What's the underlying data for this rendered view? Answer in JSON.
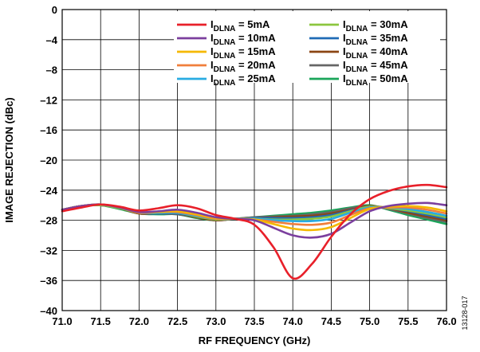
{
  "chart_data": {
    "type": "line",
    "xlabel": "RF FREQUENCY (GHz)",
    "ylabel": "IMAGE REJECTION (dBc)",
    "xlim": [
      71.0,
      76.0
    ],
    "ylim": [
      -40,
      0
    ],
    "x_ticks": [
      71.0,
      71.5,
      72.0,
      72.5,
      73.0,
      73.5,
      74.0,
      74.5,
      75.0,
      75.5,
      76.0
    ],
    "x_tick_labels": [
      "71.0",
      "71.5",
      "72.0",
      "72.5",
      "73.0",
      "73.5",
      "74.0",
      "74.5",
      "75.0",
      "75.5",
      "76.0"
    ],
    "y_ticks": [
      0,
      -4,
      -8,
      -12,
      -16,
      -20,
      -24,
      -28,
      -32,
      -36,
      -40
    ],
    "y_tick_labels": [
      "0",
      "–4",
      "–8",
      "–12",
      "–16",
      "–20",
      "–24",
      "–28",
      "–32",
      "–36",
      "–40"
    ],
    "grid": true,
    "legend_position": "top-right",
    "figure_id": "13128-017",
    "x": [
      71.0,
      71.25,
      71.5,
      71.75,
      72.0,
      72.25,
      72.5,
      72.75,
      73.0,
      73.25,
      73.5,
      73.75,
      74.0,
      74.25,
      74.5,
      74.75,
      75.0,
      75.25,
      75.5,
      75.75,
      76.0
    ],
    "series": [
      {
        "name_main": "I",
        "name_sub": "DLNA",
        "name_rest": " = 5mA",
        "color": "#e8202a",
        "values": [
          -26.8,
          -26.3,
          -25.9,
          -26.2,
          -26.7,
          -26.4,
          -26.0,
          -26.4,
          -27.3,
          -27.8,
          -28.6,
          -31.6,
          -35.7,
          -33.8,
          -30.2,
          -27.2,
          -25.2,
          -24.1,
          -23.5,
          -23.3,
          -23.6
        ]
      },
      {
        "name_main": "I",
        "name_sub": "DLNA",
        "name_rest": " = 10mA",
        "color": "#7b3f9e",
        "values": [
          -26.6,
          -26.1,
          -25.9,
          -26.3,
          -26.9,
          -26.8,
          -26.6,
          -27.0,
          -27.6,
          -27.8,
          -28.0,
          -29.0,
          -30.0,
          -30.3,
          -29.8,
          -28.3,
          -26.8,
          -26.1,
          -25.8,
          -25.7,
          -26.0
        ]
      },
      {
        "name_main": "I",
        "name_sub": "DLNA",
        "name_rest": " = 15mA",
        "color": "#f5b800",
        "values": [
          -26.6,
          -26.1,
          -25.9,
          -26.3,
          -26.9,
          -26.9,
          -26.8,
          -27.2,
          -27.7,
          -27.8,
          -27.9,
          -28.5,
          -29.1,
          -29.3,
          -28.9,
          -27.7,
          -26.5,
          -26.2,
          -26.1,
          -26.3,
          -26.8
        ]
      },
      {
        "name_main": "I",
        "name_sub": "DLNA",
        "name_rest": " = 20mA",
        "color": "#f07f3c",
        "values": [
          -26.6,
          -26.1,
          -25.9,
          -26.3,
          -27.0,
          -26.9,
          -26.9,
          -27.3,
          -27.8,
          -27.8,
          -27.9,
          -28.2,
          -28.5,
          -28.6,
          -28.3,
          -27.3,
          -26.4,
          -26.3,
          -26.3,
          -26.6,
          -27.1
        ]
      },
      {
        "name_main": "I",
        "name_sub": "DLNA",
        "name_rest": " = 25mA",
        "color": "#29abe2",
        "values": [
          -26.6,
          -26.1,
          -25.9,
          -26.3,
          -27.0,
          -27.0,
          -27.0,
          -27.4,
          -27.8,
          -27.8,
          -27.8,
          -28.0,
          -28.1,
          -28.1,
          -27.8,
          -27.0,
          -26.3,
          -26.3,
          -26.5,
          -26.9,
          -27.4
        ]
      },
      {
        "name_main": "I",
        "name_sub": "DLNA",
        "name_rest": " = 30mA",
        "color": "#8cc63f",
        "values": [
          -26.6,
          -26.1,
          -26.0,
          -26.4,
          -27.0,
          -27.0,
          -27.0,
          -27.5,
          -27.9,
          -27.8,
          -27.8,
          -27.9,
          -27.9,
          -27.8,
          -27.5,
          -26.8,
          -26.2,
          -26.4,
          -26.7,
          -27.1,
          -27.6
        ]
      },
      {
        "name_main": "I",
        "name_sub": "DLNA",
        "name_rest": " = 35mA",
        "color": "#1f6bb5",
        "values": [
          -26.6,
          -26.1,
          -26.0,
          -26.4,
          -27.0,
          -27.1,
          -27.1,
          -27.5,
          -27.9,
          -27.8,
          -27.7,
          -27.7,
          -27.7,
          -27.6,
          -27.3,
          -26.7,
          -26.2,
          -26.4,
          -26.8,
          -27.3,
          -27.8
        ]
      },
      {
        "name_main": "I",
        "name_sub": "DLNA",
        "name_rest": " = 40mA",
        "color": "#8b4513",
        "values": [
          -26.6,
          -26.1,
          -26.0,
          -26.4,
          -27.1,
          -27.1,
          -27.1,
          -27.6,
          -28.0,
          -27.8,
          -27.7,
          -27.6,
          -27.5,
          -27.4,
          -27.1,
          -26.6,
          -26.1,
          -26.4,
          -27.0,
          -27.5,
          -28.0
        ]
      },
      {
        "name_main": "I",
        "name_sub": "DLNA",
        "name_rest": " = 45mA",
        "color": "#666666",
        "values": [
          -26.6,
          -26.1,
          -26.0,
          -26.4,
          -27.1,
          -27.1,
          -27.2,
          -27.6,
          -28.0,
          -27.8,
          -27.6,
          -27.5,
          -27.4,
          -27.2,
          -26.9,
          -26.4,
          -26.1,
          -26.5,
          -27.1,
          -27.7,
          -28.2
        ]
      },
      {
        "name_main": "I",
        "name_sub": "DLNA",
        "name_rest": " = 50mA",
        "color": "#1aa55a",
        "values": [
          -26.6,
          -26.1,
          -26.0,
          -26.5,
          -27.1,
          -27.2,
          -27.2,
          -27.7,
          -28.0,
          -27.8,
          -27.6,
          -27.4,
          -27.2,
          -27.0,
          -26.7,
          -26.3,
          -26.0,
          -26.6,
          -27.3,
          -27.9,
          -28.5
        ]
      }
    ]
  }
}
